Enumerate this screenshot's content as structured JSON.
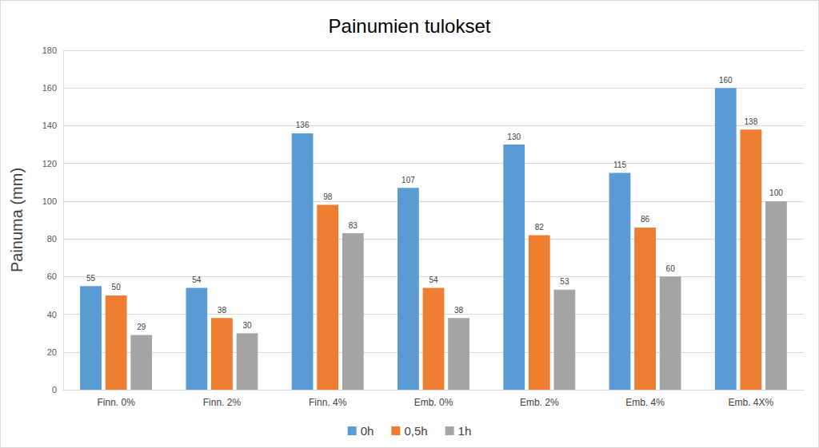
{
  "chart_data": {
    "type": "bar",
    "title": "Painumien tulokset",
    "y_label": "Painuma (mm)",
    "categories": [
      "Finn. 0%",
      "Finn. 2%",
      "Finn. 4%",
      "Emb. 0%",
      "Emb. 2%",
      "Emb. 4%",
      "Emb. 4X%"
    ],
    "series": [
      {
        "name": "0h",
        "color": "#5b9bd5",
        "values": [
          55,
          54,
          136,
          107,
          130,
          115,
          160
        ]
      },
      {
        "name": "0,5h",
        "color": "#ed7d31",
        "values": [
          50,
          38,
          98,
          54,
          82,
          86,
          138
        ]
      },
      {
        "name": "1h",
        "color": "#a5a5a5",
        "values": [
          29,
          30,
          83,
          38,
          53,
          60,
          100
        ]
      }
    ],
    "ylim": [
      0,
      180
    ],
    "yticks": [
      0,
      20,
      40,
      60,
      80,
      100,
      120,
      140,
      160,
      180
    ],
    "grid": true,
    "legend": "bottom",
    "data_labels": true
  }
}
